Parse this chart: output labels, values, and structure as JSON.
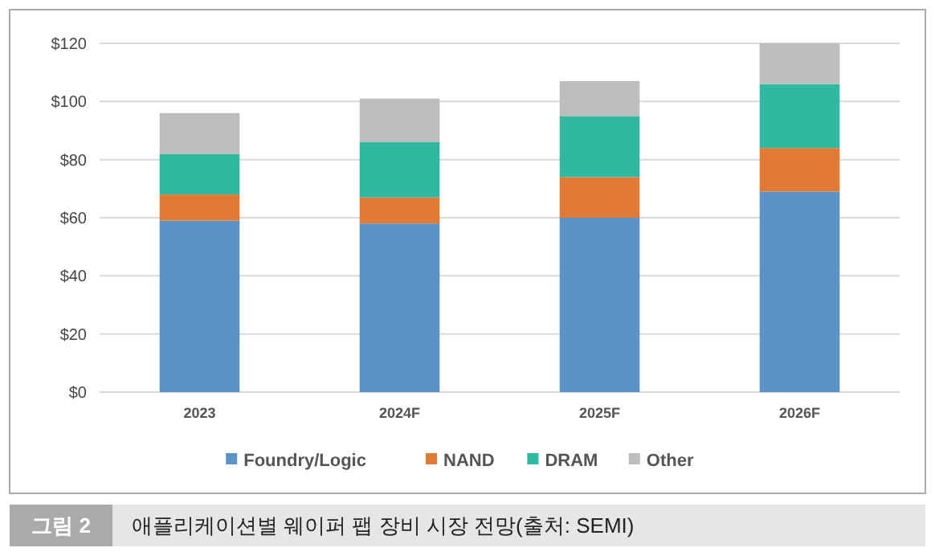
{
  "chart_data": {
    "type": "bar",
    "stacked": true,
    "categories": [
      "2023",
      "2024F",
      "2025F",
      "2026F"
    ],
    "series": [
      {
        "name": "Foundry/Logic",
        "color": "#5b93c7",
        "values": [
          59,
          58,
          60,
          69
        ]
      },
      {
        "name": "NAND",
        "color": "#e07a35",
        "values": [
          9,
          9,
          14,
          15
        ]
      },
      {
        "name": "DRAM",
        "color": "#2fb9a0",
        "values": [
          14,
          19,
          21,
          22
        ]
      },
      {
        "name": "Other",
        "color": "#bdbdbd",
        "values": [
          14,
          15,
          12,
          14
        ]
      }
    ],
    "ylim": [
      0,
      120
    ],
    "yticks": [
      {
        "value": 0,
        "label": "$0"
      },
      {
        "value": 20,
        "label": "$20"
      },
      {
        "value": 40,
        "label": "$40"
      },
      {
        "value": 60,
        "label": "$60"
      },
      {
        "value": 80,
        "label": "$80"
      },
      {
        "value": 100,
        "label": "$100"
      },
      {
        "value": 120,
        "label": "$120"
      }
    ],
    "grid": "y",
    "legend": "bottom",
    "annotations": [
      "그림 2",
      "애플리케이션별 웨이퍼 팹 장비 시장 전망(출처: SEMI)"
    ]
  }
}
